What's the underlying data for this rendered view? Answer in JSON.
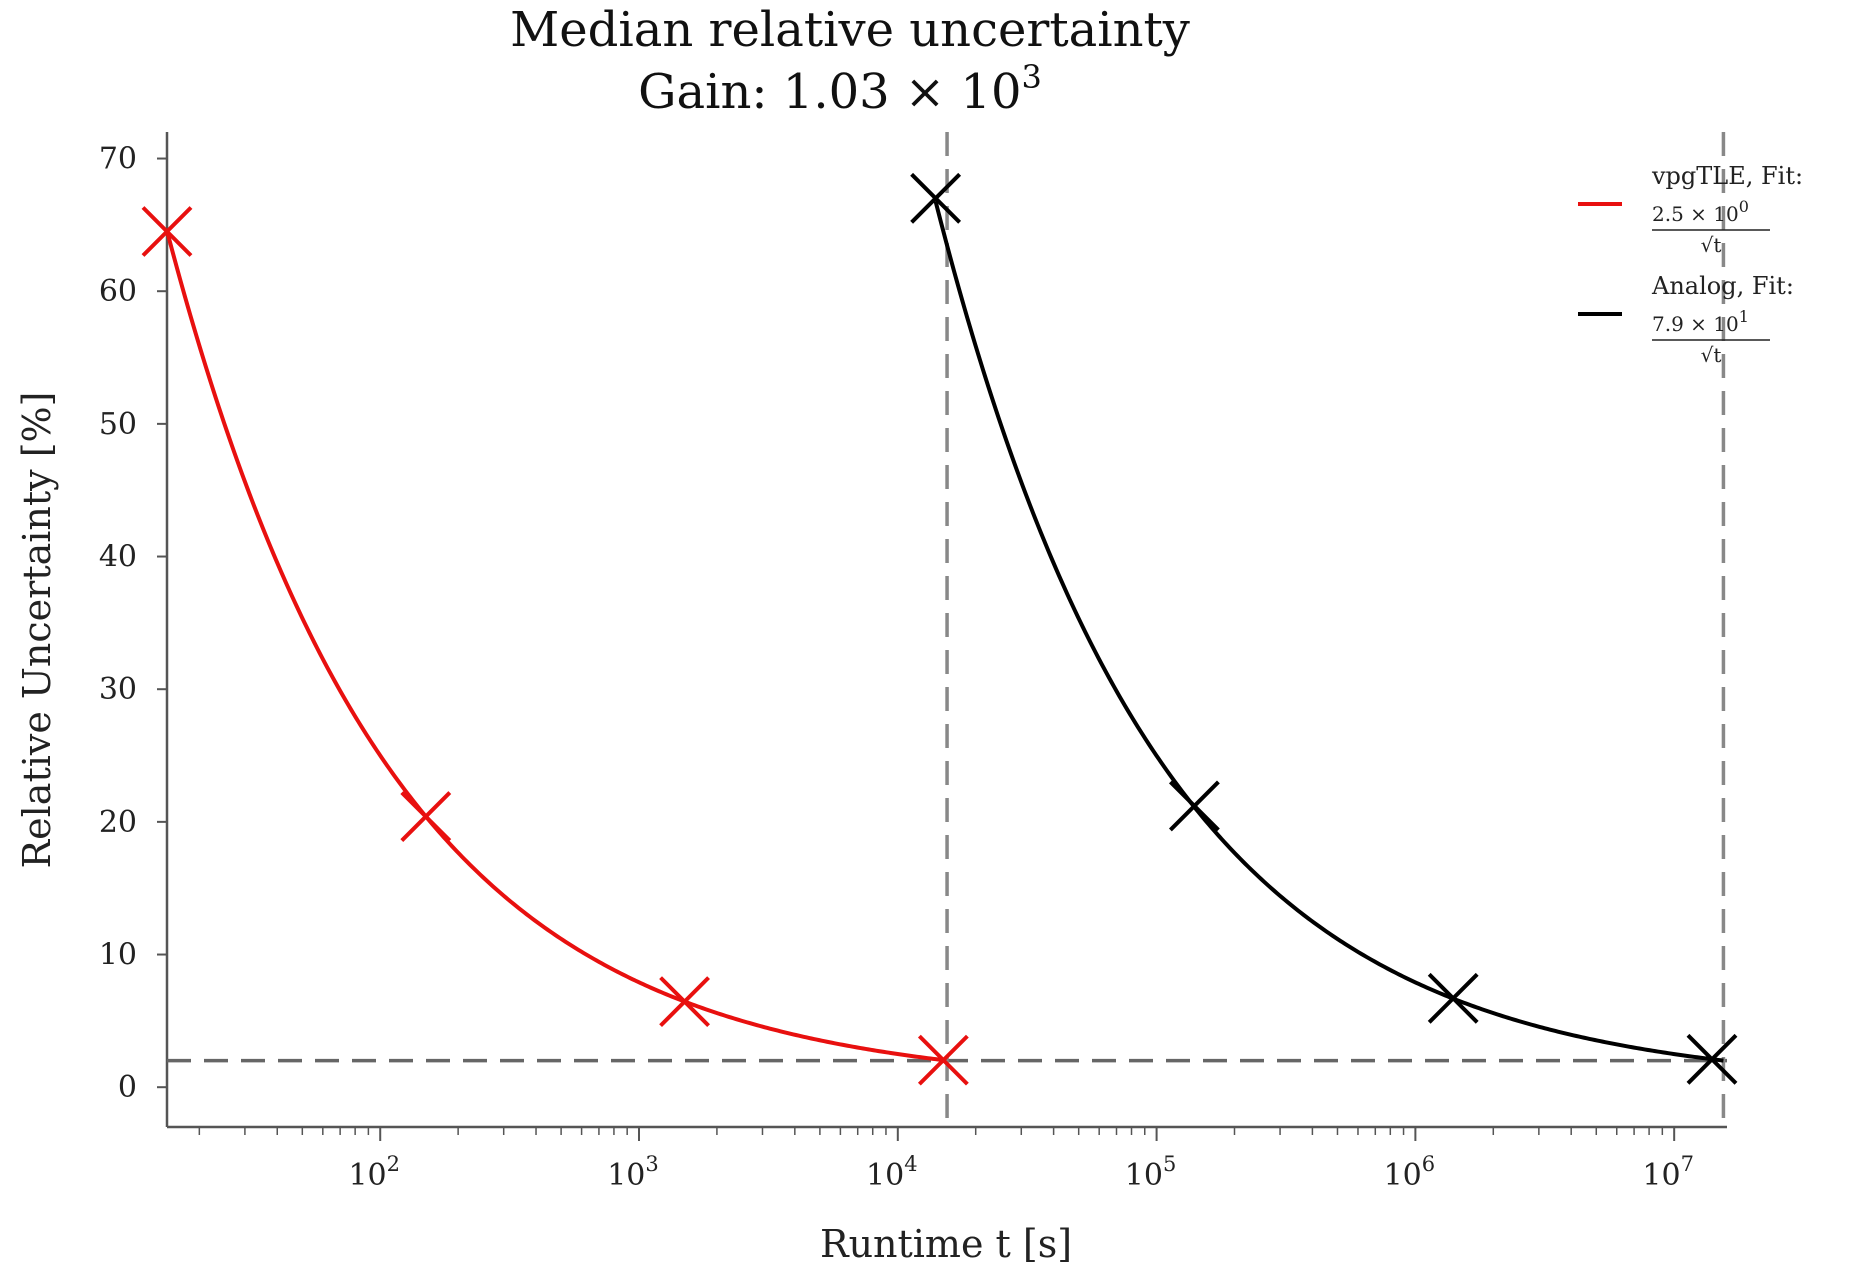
{
  "chart_data": {
    "type": "line",
    "title_line1": "Median relative uncertainty",
    "title_line2_prefix": "Gain:  1.03 × 10",
    "title_line2_exp": "3",
    "xlabel": "Runtime t [s]",
    "ylabel": "Relative Uncertainty [%]",
    "xscale": "log",
    "xlim": [
      15,
      16000000
    ],
    "ylim": [
      -3,
      72
    ],
    "xticks": [
      {
        "base": "10",
        "exp": "2",
        "value": 100
      },
      {
        "base": "10",
        "exp": "3",
        "value": 1000
      },
      {
        "base": "10",
        "exp": "4",
        "value": 10000
      },
      {
        "base": "10",
        "exp": "5",
        "value": 100000
      },
      {
        "base": "10",
        "exp": "6",
        "value": 1000000
      },
      {
        "base": "10",
        "exp": "7",
        "value": 10000000
      }
    ],
    "yticks": [
      "0",
      "10",
      "20",
      "30",
      "40",
      "50",
      "60",
      "70"
    ],
    "grid": false,
    "legend_position": "top-right",
    "series": [
      {
        "name": "vpgTLE, Fit:",
        "fit_numerator_base": "2.5 × 10",
        "fit_numerator_exp": "0",
        "fit_denominator": "√t",
        "color": "#e8100f",
        "fit_coefficient": 2.5,
        "fit_range": [
          15,
          15000
        ],
        "markers": [
          {
            "x": 15,
            "y": 64.5
          },
          {
            "x": 150,
            "y": 20.4
          },
          {
            "x": 1500,
            "y": 6.45
          },
          {
            "x": 15000,
            "y": 2.04
          }
        ]
      },
      {
        "name": "Analog, Fit:",
        "fit_numerator_base": "7.9 × 10",
        "fit_numerator_exp": "1",
        "fit_denominator": "√t",
        "color": "#000000",
        "fit_coefficient": 79,
        "fit_range": [
          14000,
          15500000
        ],
        "markers": [
          {
            "x": 14000,
            "y": 67.0
          },
          {
            "x": 140000,
            "y": 21.2
          },
          {
            "x": 1400000,
            "y": 6.7
          },
          {
            "x": 14000000,
            "y": 2.1
          }
        ]
      }
    ],
    "reference_lines": {
      "horizontal_y": 2.0,
      "vertical_x": [
        15500,
        15500000
      ],
      "color": "#888888"
    }
  }
}
